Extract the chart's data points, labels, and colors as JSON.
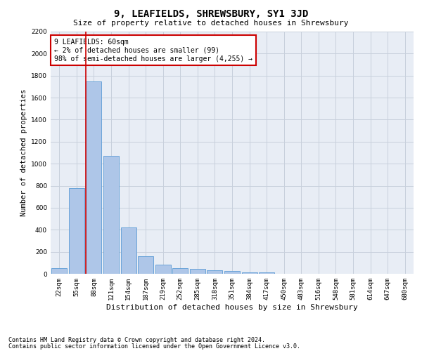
{
  "title": "9, LEAFIELDS, SHREWSBURY, SY1 3JD",
  "subtitle": "Size of property relative to detached houses in Shrewsbury",
  "xlabel": "Distribution of detached houses by size in Shrewsbury",
  "ylabel": "Number of detached properties",
  "footnote1": "Contains HM Land Registry data © Crown copyright and database right 2024.",
  "footnote2": "Contains public sector information licensed under the Open Government Licence v3.0.",
  "bar_labels": [
    "22sqm",
    "55sqm",
    "88sqm",
    "121sqm",
    "154sqm",
    "187sqm",
    "219sqm",
    "252sqm",
    "285sqm",
    "318sqm",
    "351sqm",
    "384sqm",
    "417sqm",
    "450sqm",
    "483sqm",
    "516sqm",
    "548sqm",
    "581sqm",
    "614sqm",
    "647sqm",
    "680sqm"
  ],
  "bar_values": [
    50,
    775,
    1750,
    1070,
    420,
    160,
    85,
    50,
    45,
    30,
    25,
    15,
    10,
    0,
    0,
    0,
    0,
    0,
    0,
    0,
    0
  ],
  "bar_color": "#aec6e8",
  "bar_edgecolor": "#5b9bd5",
  "vline_x": 1.52,
  "vline_color": "#cc0000",
  "ylim": [
    0,
    2200
  ],
  "yticks": [
    0,
    200,
    400,
    600,
    800,
    1000,
    1200,
    1400,
    1600,
    1800,
    2000,
    2200
  ],
  "annotation_text": "9 LEAFIELDS: 60sqm\n← 2% of detached houses are smaller (99)\n98% of semi-detached houses are larger (4,255) →",
  "annotation_box_color": "#ffffff",
  "annotation_box_edgecolor": "#cc0000",
  "grid_color": "#c8d0dc",
  "background_color": "#e8edf5",
  "title_fontsize": 10,
  "subtitle_fontsize": 8,
  "xlabel_fontsize": 8,
  "ylabel_fontsize": 7.5,
  "tick_fontsize": 6.5,
  "annotation_fontsize": 7,
  "footnote_fontsize": 6
}
